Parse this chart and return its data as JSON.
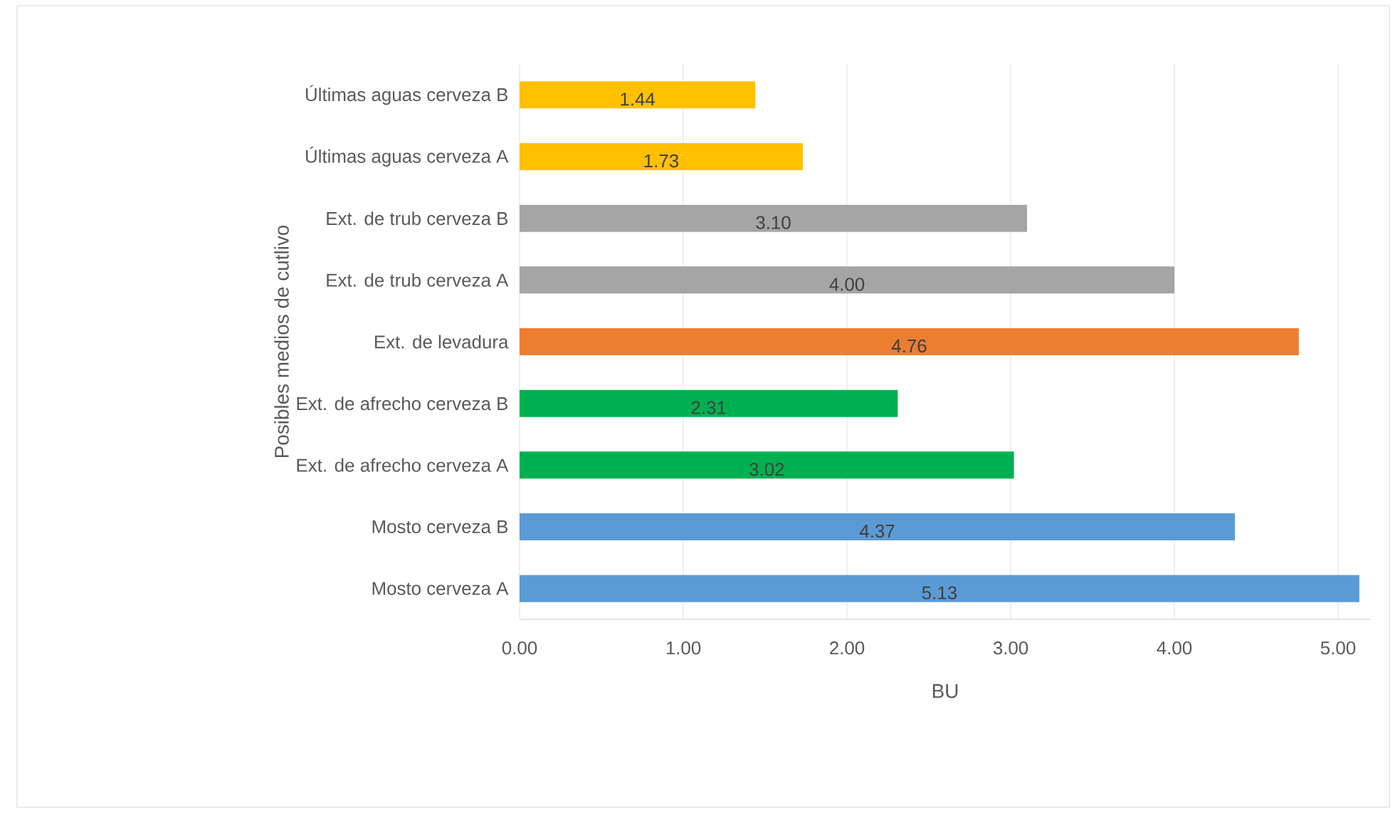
{
  "chart_data": {
    "type": "bar",
    "orientation": "horizontal",
    "xlabel": "BU",
    "ylabel": "Posibles medios de cutlivo",
    "categories": [
      "Últimas aguas cerveza B",
      "Últimas aguas cerveza A",
      "Ext. de trub cerveza B",
      "Ext. de trub cerveza A",
      "Ext. de levadura",
      "Ext. de afrecho cerveza B",
      "Ext. de afrecho cerveza A",
      "Mosto cerveza B",
      "Mosto cerveza A"
    ],
    "values": [
      1.44,
      1.73,
      3.1,
      4.0,
      4.76,
      2.31,
      3.02,
      4.37,
      5.13
    ],
    "value_labels": [
      "1.44",
      "1.73",
      "3.10",
      "4.00",
      "4.76",
      "2.31",
      "3.02",
      "4.37",
      "5.13"
    ],
    "colors": [
      "#ffc000",
      "#ffc000",
      "#a5a5a5",
      "#a5a5a5",
      "#ed7d31",
      "#00b050",
      "#00b050",
      "#5b9bd5",
      "#5b9bd5"
    ],
    "xlim": [
      0,
      5.2
    ],
    "xticks": [
      {
        "value": 0,
        "label": "0.00"
      },
      {
        "value": 1,
        "label": "1.00"
      },
      {
        "value": 2,
        "label": "2.00"
      },
      {
        "value": 3,
        "label": "3.00"
      },
      {
        "value": 4,
        "label": "4.00"
      },
      {
        "value": 5,
        "label": "5.00"
      }
    ],
    "grid": "x"
  }
}
